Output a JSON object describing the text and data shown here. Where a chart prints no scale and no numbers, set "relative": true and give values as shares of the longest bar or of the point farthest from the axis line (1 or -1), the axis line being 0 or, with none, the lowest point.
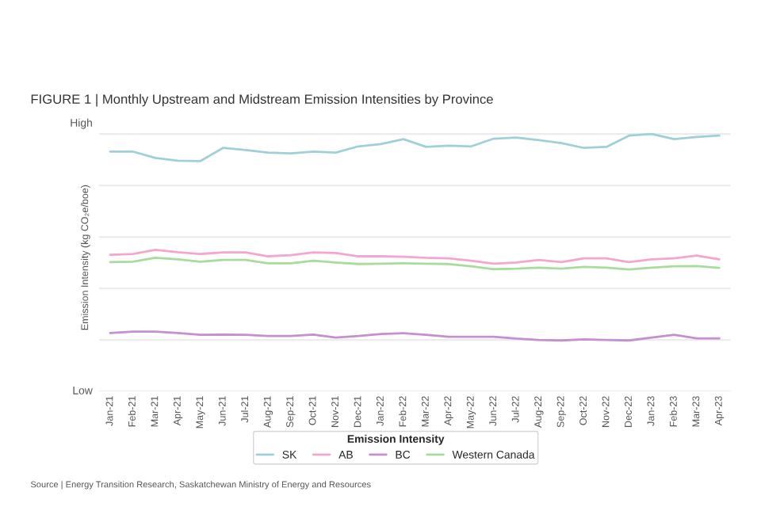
{
  "chart_data": {
    "type": "line",
    "title": "FIGURE 1 | Monthly Upstream and Midstream Emission Intensities by Province",
    "ylabel": "Emission Intensity (kg CO₂e/boe)",
    "legend_title": "Emission Intensity",
    "annotations": [
      "High",
      "Low",
      "Source | Energy Transition Research, Saskatchewan Ministry of Energy and Resources"
    ],
    "categories": [
      "Jan-21",
      "Feb-21",
      "Mar-21",
      "Apr-21",
      "May-21",
      "Jun-21",
      "Jul-21",
      "Aug-21",
      "Sep-21",
      "Oct-21",
      "Nov-21",
      "Dec-21",
      "Jan-22",
      "Feb-22",
      "Mar-22",
      "Apr-22",
      "May-22",
      "Jun-22",
      "Jul-22",
      "Aug-22",
      "Sep-22",
      "Oct-22",
      "Nov-22",
      "Dec-22",
      "Jan-23",
      "Feb-23",
      "Mar-23",
      "Apr-23"
    ],
    "relative": true,
    "series": [
      {
        "name": "SK",
        "color": "#9fd0d8",
        "values": [
          0.932,
          0.932,
          0.907,
          0.896,
          0.895,
          0.946,
          0.938,
          0.928,
          0.925,
          0.932,
          0.928,
          0.952,
          0.961,
          0.98,
          0.95,
          0.955,
          0.952,
          0.982,
          0.986,
          0.976,
          0.965,
          0.946,
          0.95,
          0.994,
          1,
          0.98,
          0.989,
          0.994
        ]
      },
      {
        "name": "AB",
        "color": "#f4a6cc",
        "values": [
          0.531,
          0.534,
          0.55,
          0.541,
          0.534,
          0.54,
          0.54,
          0.525,
          0.529,
          0.54,
          0.538,
          0.525,
          0.525,
          0.523,
          0.519,
          0.517,
          0.508,
          0.496,
          0.501,
          0.511,
          0.502,
          0.517,
          0.517,
          0.502,
          0.513,
          0.517,
          0.528,
          0.513
        ]
      },
      {
        "name": "BC",
        "color": "#c58fd0",
        "values": [
          0.227,
          0.232,
          0.232,
          0.227,
          0.22,
          0.221,
          0.22,
          0.215,
          0.215,
          0.221,
          0.209,
          0.215,
          0.223,
          0.226,
          0.22,
          0.212,
          0.212,
          0.212,
          0.205,
          0.2,
          0.198,
          0.202,
          0.2,
          0.198,
          0.209,
          0.22,
          0.206,
          0.206
        ]
      },
      {
        "name": "Western Canada",
        "color": "#a8dc9c",
        "values": [
          0.502,
          0.504,
          0.519,
          0.513,
          0.504,
          0.511,
          0.511,
          0.498,
          0.498,
          0.508,
          0.501,
          0.495,
          0.496,
          0.498,
          0.496,
          0.495,
          0.486,
          0.475,
          0.477,
          0.481,
          0.477,
          0.484,
          0.481,
          0.474,
          0.481,
          0.486,
          0.487,
          0.48
        ]
      }
    ],
    "grid": "y",
    "legend": "bottom",
    "marker": "none",
    "line_style": "solid"
  }
}
